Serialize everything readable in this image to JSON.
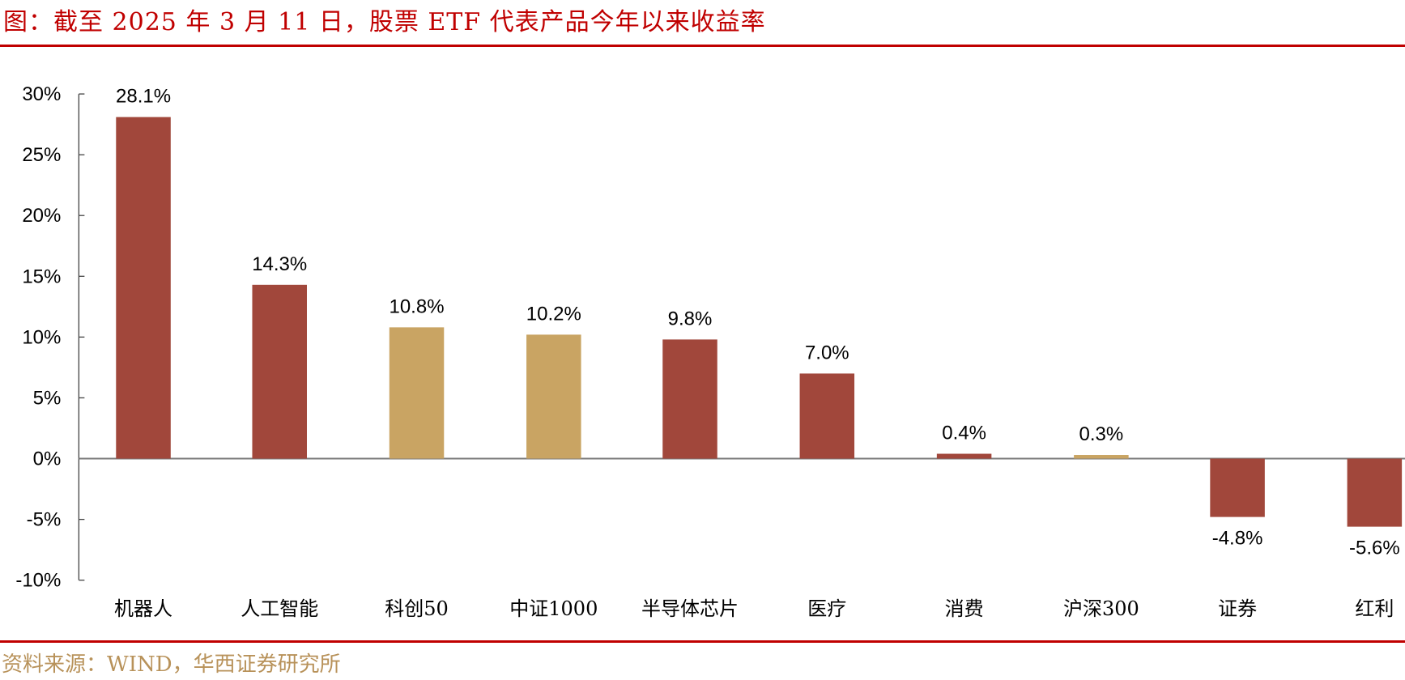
{
  "title": "图：截至 2025 年 3 月 11 日，股票 ETF 代表产品今年以来收益率",
  "source": "资料来源：WIND，华西证券研究所",
  "colors": {
    "accent": "#c00000",
    "bar_red": "#a1473b",
    "bar_gold": "#c9a463",
    "source_text": "#b8925a"
  },
  "chart_data": {
    "type": "bar",
    "title": "截至 2025 年 3 月 11 日，股票 ETF 代表产品今年以来收益率",
    "xlabel": "",
    "ylabel": "",
    "ylim": [
      -0.1,
      0.3
    ],
    "yticks": [
      "30%",
      "25%",
      "20%",
      "15%",
      "10%",
      "5%",
      "0%",
      "-5%",
      "-10%"
    ],
    "grid": false,
    "legend": null,
    "categories": [
      "机器人",
      "人工智能",
      "科创50",
      "中证1000",
      "半导体芯片",
      "医疗",
      "消费",
      "沪深300",
      "证券",
      "红利"
    ],
    "values": [
      28.1,
      14.3,
      10.8,
      10.2,
      9.8,
      7.0,
      0.4,
      0.3,
      -4.8,
      -5.6
    ],
    "value_labels": [
      "28.1%",
      "14.3%",
      "10.8%",
      "10.2%",
      "9.8%",
      "7.0%",
      "0.4%",
      "0.3%",
      "-4.8%",
      "-5.6%"
    ],
    "bar_colors": [
      "red",
      "red",
      "gold",
      "gold",
      "red",
      "red",
      "red",
      "gold",
      "red",
      "red"
    ],
    "unit": "%"
  }
}
